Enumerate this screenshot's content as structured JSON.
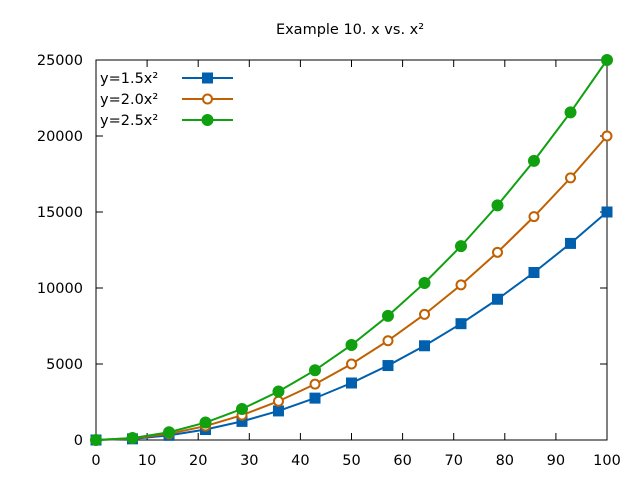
{
  "chart_data": {
    "type": "line",
    "title": "Example 10. x vs. x²",
    "xlabel": "",
    "ylabel": "",
    "xlim": [
      0,
      100
    ],
    "ylim": [
      0,
      25000
    ],
    "x_ticks": [
      "0",
      "10",
      "20",
      "30",
      "40",
      "50",
      "60",
      "70",
      "80",
      "90",
      "100"
    ],
    "y_ticks": [
      "0",
      "5000",
      "10000",
      "15000",
      "20000",
      "25000"
    ],
    "grid": false,
    "legend_position": "top-left",
    "x": [
      0,
      7.14,
      14.29,
      21.43,
      28.57,
      35.71,
      42.86,
      50,
      57.14,
      64.29,
      71.43,
      78.57,
      85.71,
      92.86,
      100
    ],
    "series": [
      {
        "name": "y=1.5x²",
        "color": "#0060ad",
        "marker": "filled-square",
        "values": [
          0,
          77,
          306,
          689,
          1224,
          1913,
          2755,
          3750,
          4898,
          6199,
          7653,
          9260,
          11020,
          12934,
          15000
        ]
      },
      {
        "name": "y=2.0x²",
        "color": "#c06000",
        "marker": "open-circle",
        "values": [
          0,
          102,
          408,
          918,
          1633,
          2551,
          3673,
          5000,
          6531,
          8265,
          10204,
          12347,
          14694,
          17245,
          20000
        ]
      },
      {
        "name": "y=2.5x²",
        "color": "#10a010",
        "marker": "filled-circle",
        "values": [
          0,
          128,
          510,
          1148,
          2041,
          3189,
          4592,
          6250,
          8163,
          10332,
          12755,
          15434,
          18367,
          21556,
          25000
        ]
      }
    ]
  }
}
